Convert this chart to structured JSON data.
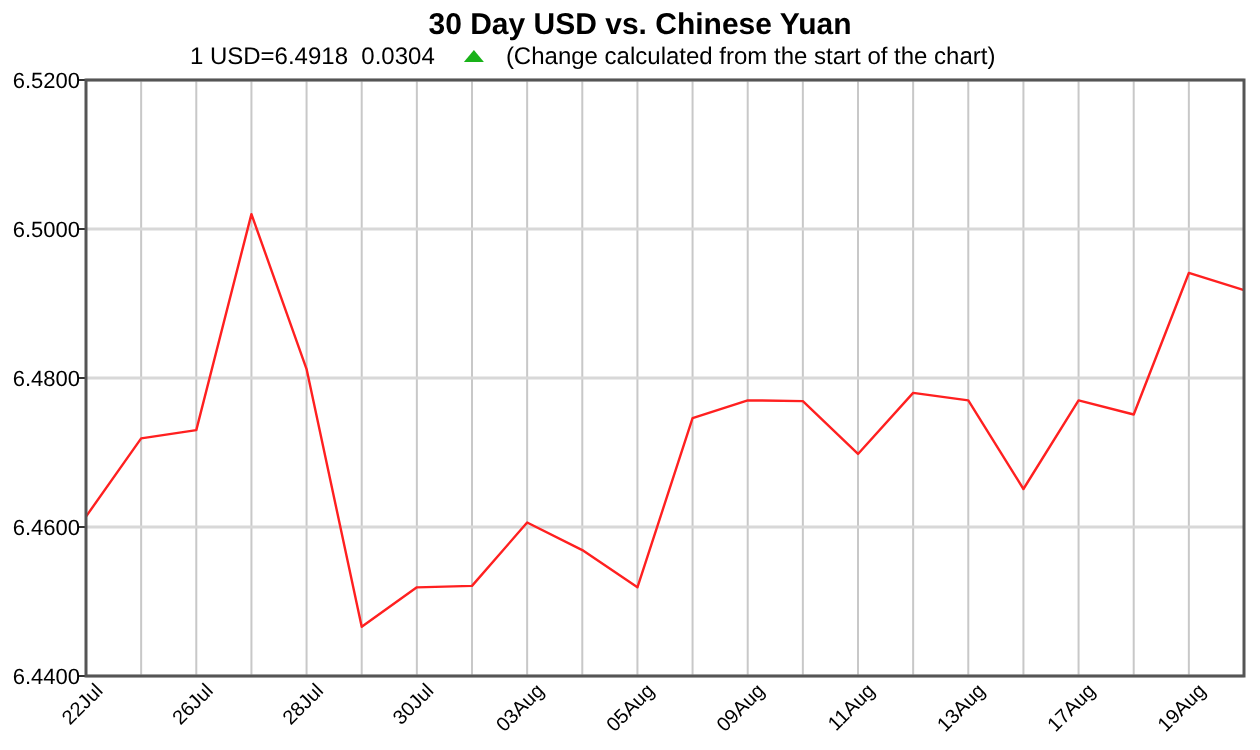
{
  "chart_data": {
    "type": "line",
    "title": "30 Day USD vs. Chinese Yuan",
    "subtitle": "1 USD=6.4918  0.0304",
    "annotations": [
      "(Change calculated from the start of the chart)"
    ],
    "categories": [
      "22Jul",
      null,
      "26Jul",
      null,
      "28Jul",
      null,
      "30Jul",
      null,
      "03Aug",
      null,
      "05Aug",
      null,
      "09Aug",
      null,
      "11Aug",
      null,
      "13Aug",
      null,
      "17Aug",
      null,
      "19Aug",
      null
    ],
    "series": [
      {
        "color": "#ff2020",
        "values": [
          6.4614,
          6.4719,
          6.473,
          6.502,
          6.4812,
          6.4466,
          6.4519,
          6.4521,
          6.4606,
          6.4569,
          6.4519,
          6.4746,
          6.477,
          6.4769,
          6.4698,
          6.478,
          6.477,
          6.4651,
          6.477,
          6.4751,
          6.4941,
          6.4918
        ]
      }
    ],
    "ylim": [
      6.44,
      6.52
    ],
    "yticks": [
      {
        "value": 6.44,
        "label": "6.4400"
      },
      {
        "value": 6.46,
        "label": "6.4600"
      },
      {
        "value": 6.48,
        "label": "6.4800"
      },
      {
        "value": 6.5,
        "label": "6.5000"
      },
      {
        "value": 6.52,
        "label": "6.5200"
      }
    ],
    "grid": true,
    "marker": "none",
    "line_style": "solid"
  }
}
